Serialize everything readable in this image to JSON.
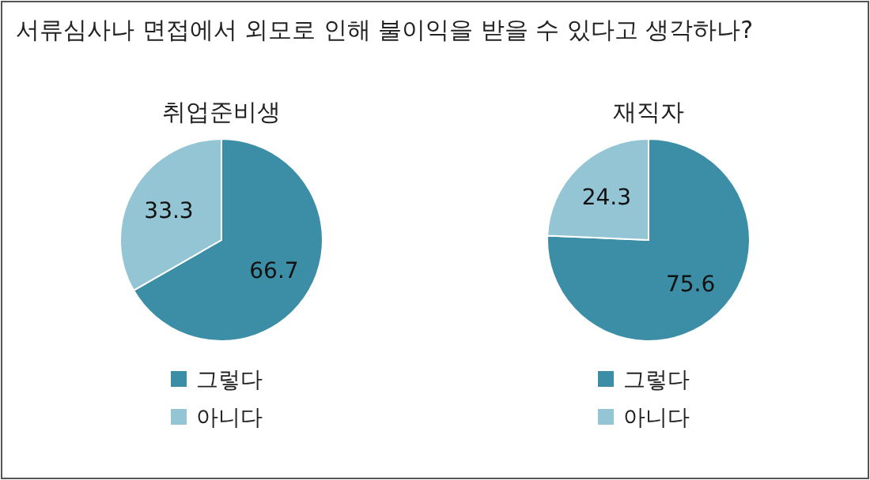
{
  "chart_data": [
    {
      "type": "pie",
      "title": "서류심사나 면접에서 외모로 인해 불이익을 받을 수 있다고 생각하나?",
      "subtitle": "취업준비생",
      "categories": [
        "그렇다",
        "아니다"
      ],
      "values": [
        66.7,
        33.3
      ],
      "colors": [
        "#3b8ea5",
        "#93c5d5"
      ],
      "data_labels": true,
      "legend": "bottom"
    },
    {
      "type": "pie",
      "title": "재직자",
      "categories": [
        "그렇다",
        "아니다"
      ],
      "values": [
        75.6,
        24.3
      ],
      "colors": [
        "#3b8ea5",
        "#93c5d5"
      ],
      "data_labels": true,
      "legend": "bottom"
    }
  ]
}
